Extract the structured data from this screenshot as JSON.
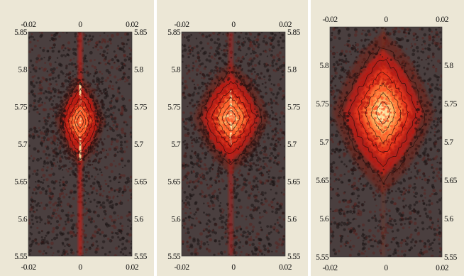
{
  "chart_data": [
    {
      "type": "heatmap",
      "x_ticks": [
        "-0.02",
        "0",
        "0.02"
      ],
      "y_ticks": [
        "5.85",
        "5.8",
        "5.75",
        "5.7",
        "5.65",
        "5.6",
        "5.55"
      ],
      "xlim": [
        -0.02,
        0.02
      ],
      "ylim": [
        5.55,
        5.85
      ],
      "peak": {
        "x": 0.0,
        "y": 5.73
      },
      "grid": false,
      "colormap": [
        "#4a3f3f",
        "#7a1d16",
        "#c81e14",
        "#ef3b1c",
        "#ff7b3a",
        "#ffb562",
        "#ffe9a6"
      ]
    },
    {
      "type": "heatmap",
      "x_ticks": [
        "-0.02",
        "0",
        "0.02"
      ],
      "y_ticks": [
        "5.85",
        "5.8",
        "5.75",
        "5.7",
        "5.65",
        "5.6",
        "5.55"
      ],
      "xlim": [
        -0.02,
        0.02
      ],
      "ylim": [
        5.55,
        5.85
      ],
      "peak": {
        "x": -0.001,
        "y": 5.735
      },
      "grid": false,
      "colormap": [
        "#4a3f3f",
        "#7a1d16",
        "#c81e14",
        "#ef3b1c",
        "#ff7b3a",
        "#ffb562",
        "#ffe9a6"
      ]
    },
    {
      "type": "heatmap",
      "x_ticks": [
        "-0.02",
        "0",
        "0.02"
      ],
      "y_ticks": [
        "5.8",
        "5.75",
        "5.7",
        "5.65",
        "5.6",
        "5.55"
      ],
      "xlim": [
        -0.02,
        0.02
      ],
      "ylim": [
        5.55,
        5.85
      ],
      "peak": {
        "x": -0.001,
        "y": 5.738
      },
      "grid": false,
      "colormap": [
        "#4a3f3f",
        "#7a1d16",
        "#c81e14",
        "#ef3b1c",
        "#ff7b3a",
        "#ffb562",
        "#ffe9a6"
      ]
    }
  ]
}
